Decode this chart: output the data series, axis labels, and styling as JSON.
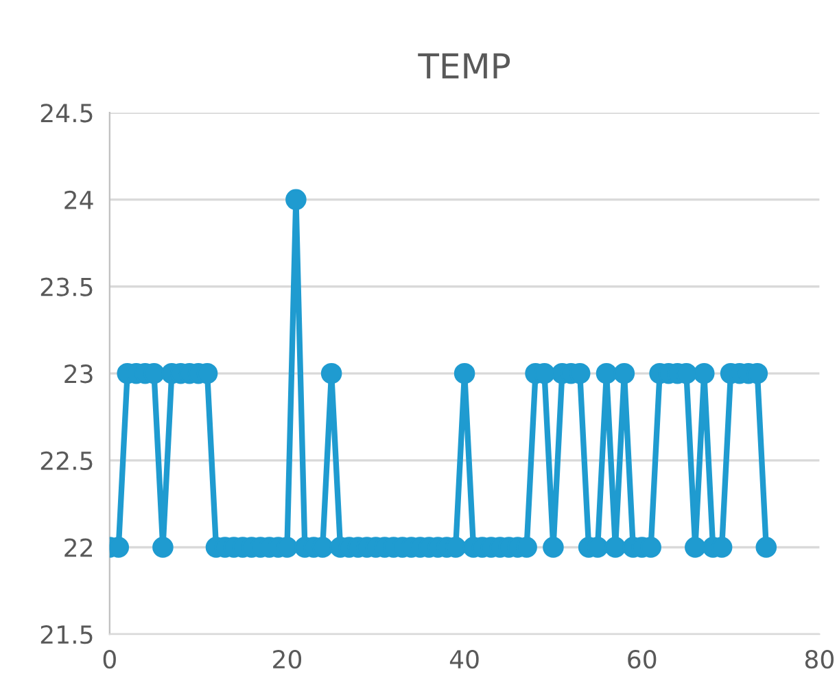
{
  "chart_data": {
    "type": "line",
    "title": "TEMP",
    "x": [
      0,
      1,
      2,
      3,
      4,
      5,
      6,
      7,
      8,
      9,
      10,
      11,
      12,
      13,
      14,
      15,
      16,
      17,
      18,
      19,
      20,
      21,
      22,
      23,
      24,
      25,
      26,
      27,
      28,
      29,
      30,
      31,
      32,
      33,
      34,
      35,
      36,
      37,
      38,
      39,
      40,
      41,
      42,
      43,
      44,
      45,
      46,
      47,
      48,
      49,
      50,
      51,
      52,
      53,
      54,
      55,
      56,
      57,
      58,
      59,
      60,
      61,
      62,
      63,
      64,
      65,
      66,
      67,
      68,
      69,
      70,
      71,
      72,
      73,
      74
    ],
    "series": [
      {
        "color": "#1f9bd0",
        "values": [
          22,
          22,
          23,
          23,
          23,
          23,
          22,
          23,
          23,
          23,
          23,
          23,
          22,
          22,
          22,
          22,
          22,
          22,
          22,
          22,
          22,
          24,
          22,
          22,
          22,
          23,
          22,
          22,
          22,
          22,
          22,
          22,
          22,
          22,
          22,
          22,
          22,
          22,
          22,
          22,
          23,
          22,
          22,
          22,
          22,
          22,
          22,
          22,
          23,
          23,
          22,
          23,
          23,
          23,
          22,
          22,
          23,
          22,
          23,
          22,
          22,
          22,
          23,
          23,
          23,
          23,
          22,
          23,
          22,
          22,
          23,
          23,
          23,
          23,
          22
        ]
      }
    ],
    "xlim": [
      0,
      80
    ],
    "xticks": [
      0,
      20,
      40,
      60,
      80
    ],
    "ylim": [
      21.5,
      24.5
    ],
    "yticks": [
      21.5,
      22,
      22.5,
      23,
      23.5,
      24,
      24.5
    ],
    "grid": "y",
    "marker": "circle",
    "line_style": "solid"
  }
}
